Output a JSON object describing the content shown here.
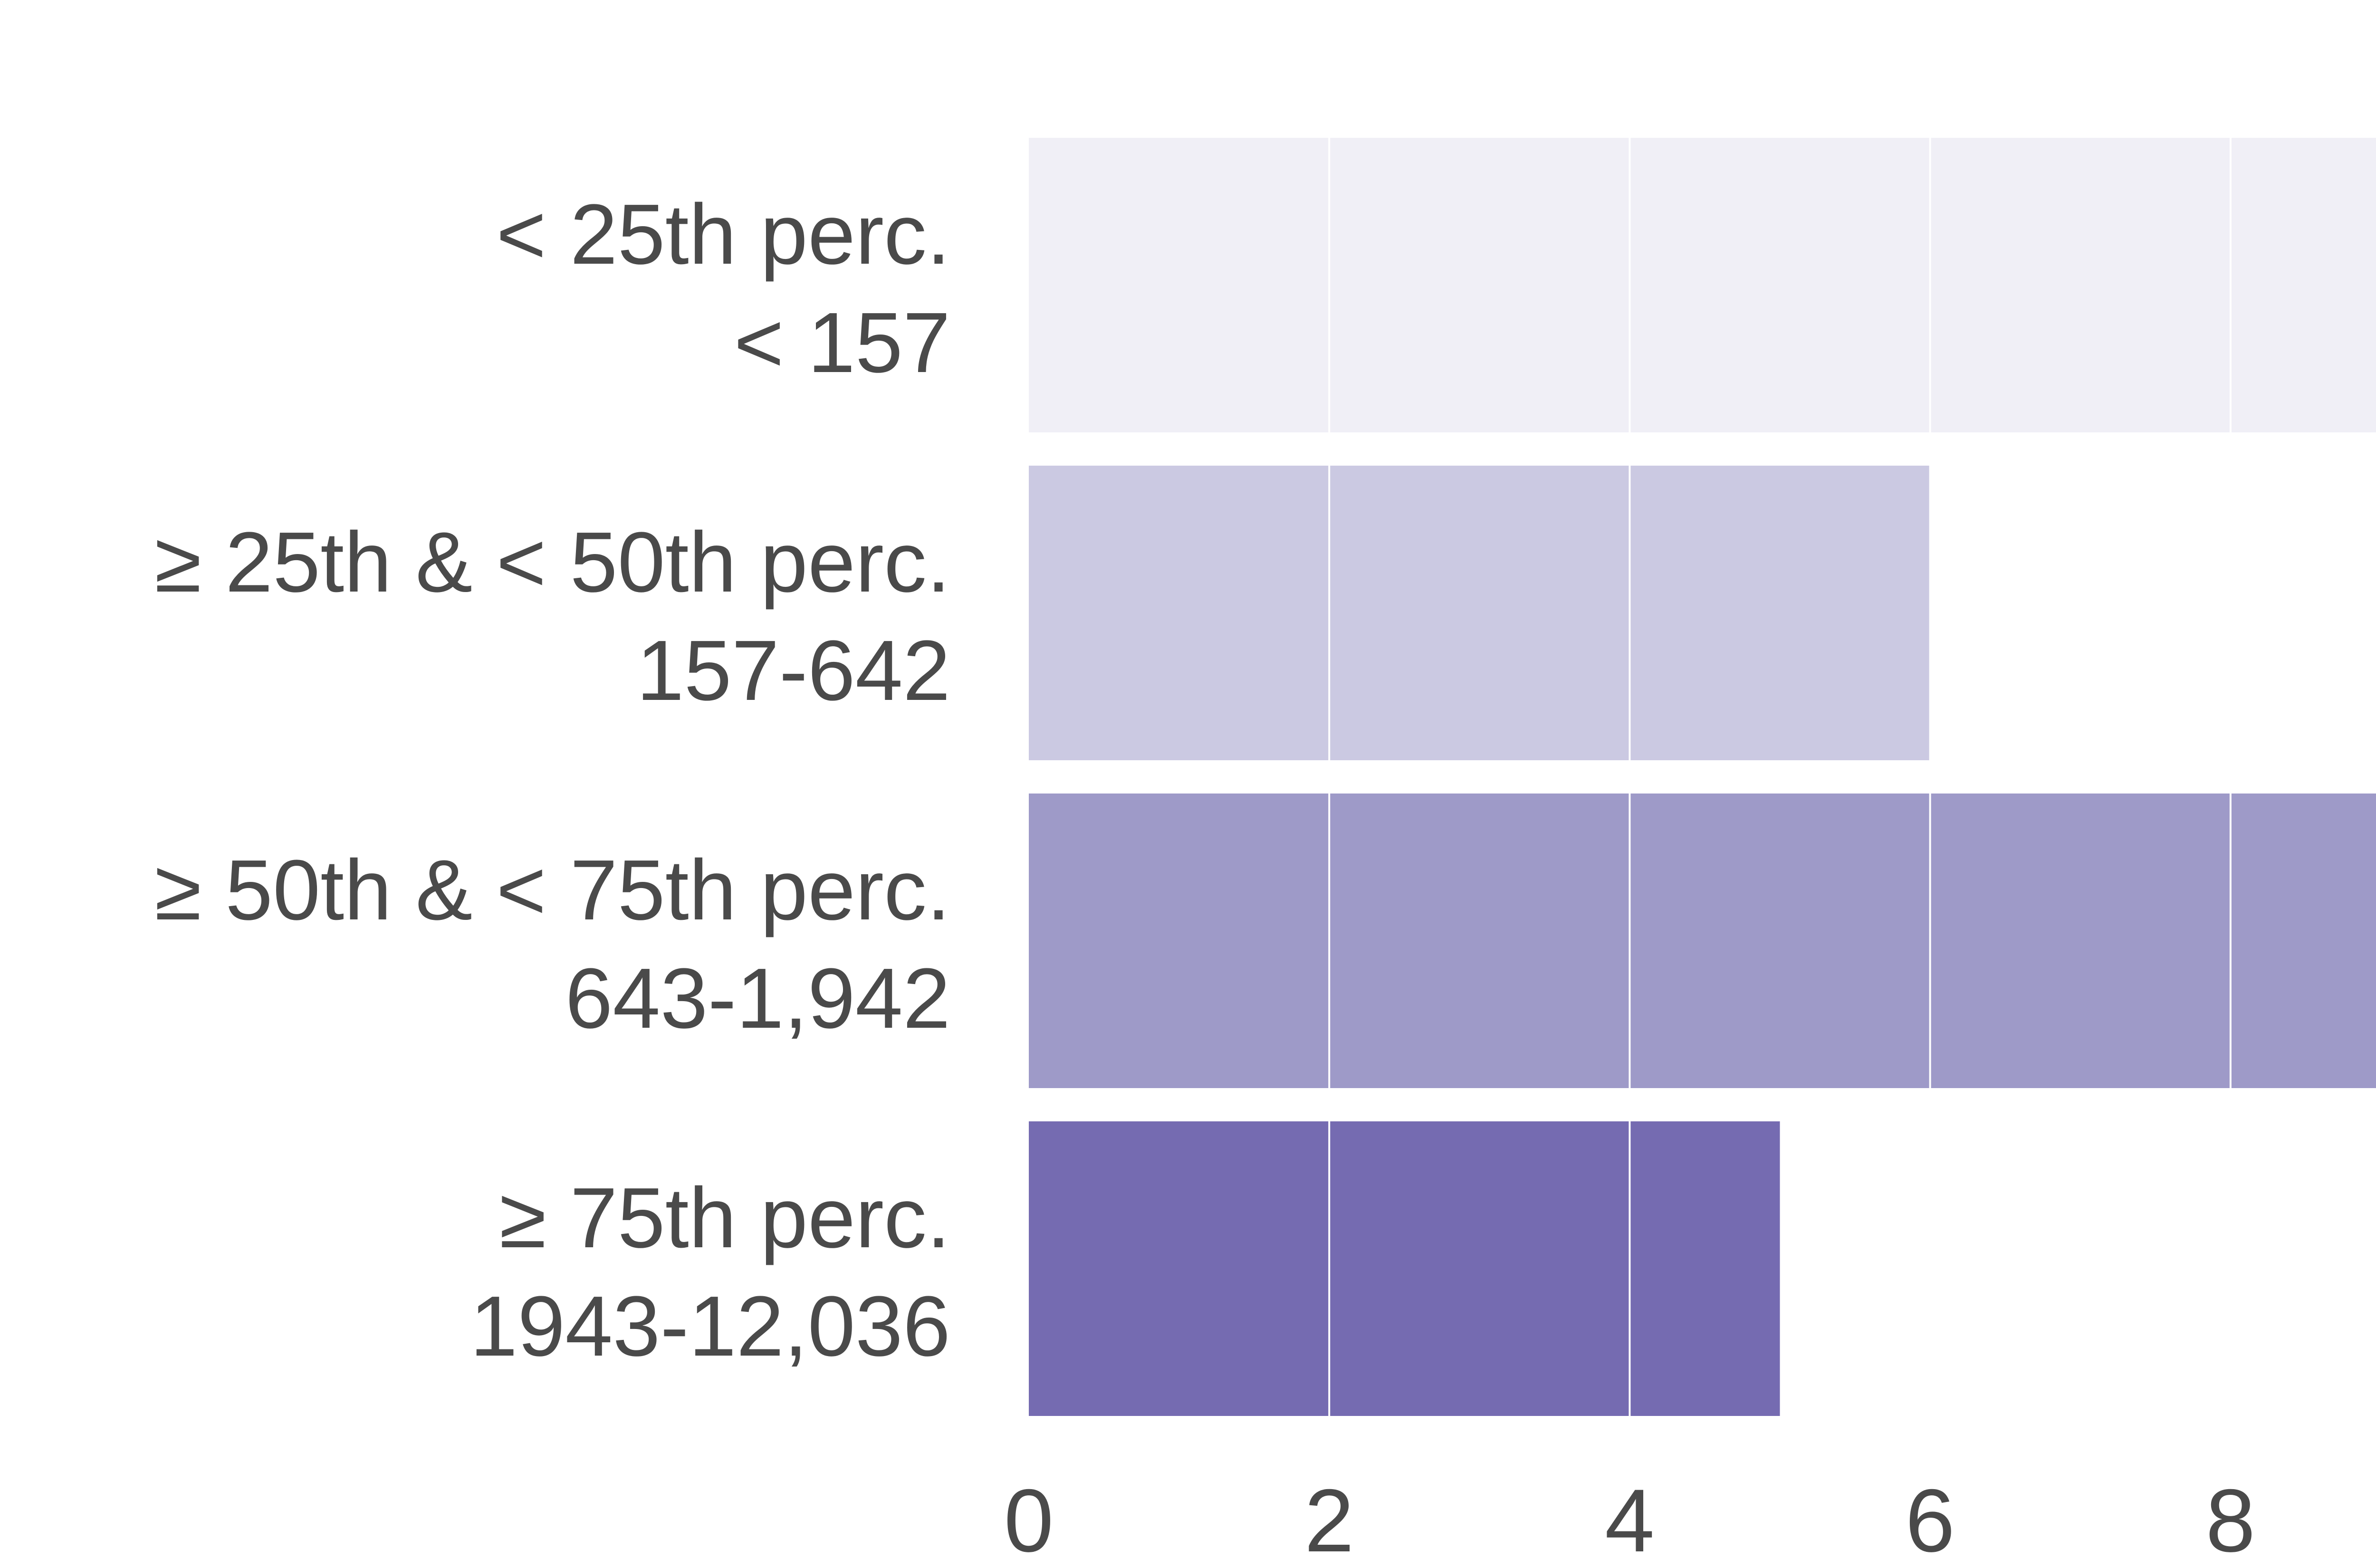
{
  "chart_data": {
    "type": "bar",
    "orientation": "horizontal",
    "categories": [
      [
        "< 25th perc.",
        "< 157"
      ],
      [
        "≥ 25th & < 50th perc.",
        "157-642"
      ],
      [
        "≥ 50th & < 75th perc.",
        "643-1,942"
      ],
      [
        "≥ 75th perc.",
        "1943-12,036"
      ]
    ],
    "values": [
      9,
      6,
      9,
      5
    ],
    "colors": [
      "#f0eff6",
      "#cbc9e2",
      "#9e9ac8",
      "#756bb1"
    ],
    "xlim": [
      0,
      9
    ],
    "xticks": [
      0,
      2,
      4,
      6,
      8
    ],
    "xtick_labels": [
      "0",
      "2",
      "4",
      "6",
      "8"
    ],
    "title": "",
    "xlabel": "",
    "ylabel": "",
    "grid": "vertical white gridlines",
    "text_color": "#4a4a4a"
  }
}
